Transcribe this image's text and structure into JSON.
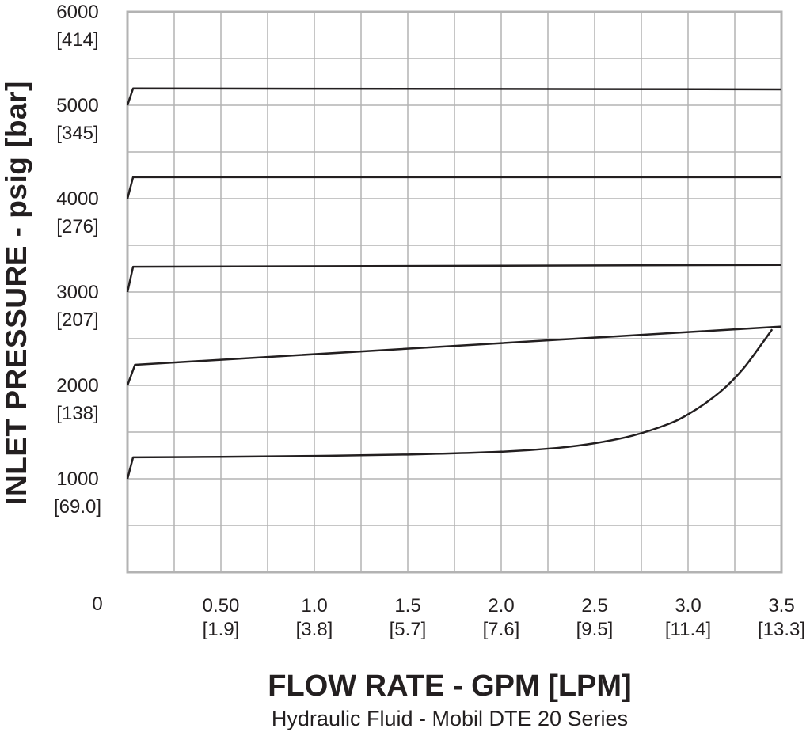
{
  "chart_data": {
    "type": "line",
    "xlabel": "FLOW RATE - GPM [LPM]",
    "ylabel": "INLET PRESSURE - psig [bar]",
    "caption": "Hydraulic Fluid - Mobil DTE 20 Series",
    "xlim": [
      0,
      3.5
    ],
    "ylim": [
      0,
      6000
    ],
    "grid": true,
    "y_origin_label": "0",
    "x_ticks": [
      {
        "value": 0.5,
        "label": "0.50",
        "sub": "[1.9]"
      },
      {
        "value": 1.0,
        "label": "1.0",
        "sub": "[3.8]"
      },
      {
        "value": 1.5,
        "label": "1.5",
        "sub": "[5.7]"
      },
      {
        "value": 2.0,
        "label": "2.0",
        "sub": "[7.6]"
      },
      {
        "value": 2.5,
        "label": "2.5",
        "sub": "[9.5]"
      },
      {
        "value": 3.0,
        "label": "3.0",
        "sub": "[11.4]"
      },
      {
        "value": 3.5,
        "label": "3.5",
        "sub": "[13.3]"
      }
    ],
    "y_ticks": [
      {
        "value": 1000,
        "label": "1000",
        "sub": "[69.0]"
      },
      {
        "value": 2000,
        "label": "2000",
        "sub": "[138]"
      },
      {
        "value": 3000,
        "label": "3000",
        "sub": "[207]"
      },
      {
        "value": 4000,
        "label": "4000",
        "sub": "[276]"
      },
      {
        "value": 5000,
        "label": "5000",
        "sub": "[345]"
      },
      {
        "value": 6000,
        "label": "6000",
        "sub": "[414]"
      }
    ],
    "x_grid_step": 0.25,
    "y_grid_step": 500,
    "series": [
      {
        "points": [
          [
            0.0,
            1000
          ],
          [
            0.03,
            1230
          ],
          [
            0.5,
            1235
          ],
          [
            1.0,
            1245
          ],
          [
            1.5,
            1260
          ],
          [
            2.0,
            1290
          ],
          [
            2.3,
            1330
          ],
          [
            2.5,
            1380
          ],
          [
            2.7,
            1460
          ],
          [
            2.9,
            1590
          ],
          [
            3.0,
            1690
          ],
          [
            3.1,
            1820
          ],
          [
            3.2,
            1980
          ],
          [
            3.3,
            2190
          ],
          [
            3.4,
            2460
          ],
          [
            3.45,
            2600
          ]
        ]
      },
      {
        "points": [
          [
            0.0,
            2000
          ],
          [
            0.04,
            2220
          ],
          [
            3.5,
            2630
          ]
        ]
      },
      {
        "points": [
          [
            0.0,
            3000
          ],
          [
            0.03,
            3270
          ],
          [
            3.5,
            3290
          ]
        ]
      },
      {
        "points": [
          [
            0.0,
            4000
          ],
          [
            0.03,
            4230
          ],
          [
            3.5,
            4230
          ]
        ]
      },
      {
        "points": [
          [
            0.0,
            5000
          ],
          [
            0.03,
            5180
          ],
          [
            3.5,
            5170
          ]
        ]
      }
    ]
  }
}
